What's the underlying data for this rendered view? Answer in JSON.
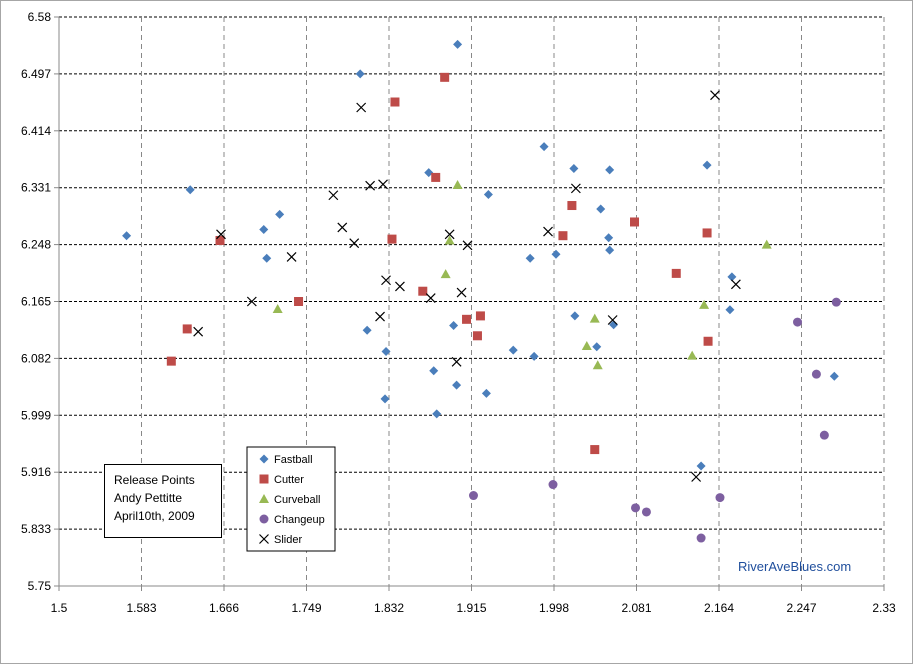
{
  "chart_data": {
    "type": "scatter",
    "title": "Release Points",
    "subtitle_lines": [
      "Andy Pettitte",
      "April10th, 2009"
    ],
    "credit": "RiverAveBlues.com",
    "xlim": [
      1.5,
      2.33
    ],
    "ylim": [
      5.75,
      6.58
    ],
    "x_ticks": [
      "1.5",
      "1.583",
      "1.666",
      "1.749",
      "1.832",
      "1.915",
      "1.998",
      "2.081",
      "2.164",
      "2.247",
      "2.33"
    ],
    "y_ticks": [
      "6.58",
      "6.497",
      "6.414",
      "6.331",
      "6.248",
      "6.165",
      "6.082",
      "5.999",
      "5.916",
      "5.833",
      "5.75"
    ],
    "grid": true,
    "legend_placement": "bottom-left",
    "series": [
      {
        "name": "Fastball",
        "marker": "diamond",
        "color": "#4a7ebb",
        "points": [
          [
            1.568,
            6.261
          ],
          [
            1.632,
            6.328
          ],
          [
            1.706,
            6.27
          ],
          [
            1.722,
            6.292
          ],
          [
            1.709,
            6.228
          ],
          [
            1.872,
            6.353
          ],
          [
            1.901,
            6.54
          ],
          [
            1.803,
            6.497
          ],
          [
            1.932,
            6.321
          ],
          [
            1.988,
            6.391
          ],
          [
            2.018,
            6.359
          ],
          [
            2.054,
            6.357
          ],
          [
            2.152,
            6.364
          ],
          [
            2.045,
            6.3
          ],
          [
            2.053,
            6.258
          ],
          [
            2.054,
            6.24
          ],
          [
            2.0,
            6.234
          ],
          [
            1.974,
            6.228
          ],
          [
            2.177,
            6.201
          ],
          [
            2.019,
            6.144
          ],
          [
            2.058,
            6.131
          ],
          [
            2.041,
            6.099
          ],
          [
            2.175,
            6.153
          ],
          [
            1.81,
            6.123
          ],
          [
            1.829,
            6.092
          ],
          [
            1.897,
            6.13
          ],
          [
            1.957,
            6.094
          ],
          [
            1.978,
            6.085
          ],
          [
            1.877,
            6.064
          ],
          [
            1.9,
            6.043
          ],
          [
            1.93,
            6.031
          ],
          [
            1.828,
            6.023
          ],
          [
            1.88,
            6.001
          ],
          [
            2.146,
            5.925
          ],
          [
            2.28,
            6.056
          ]
        ]
      },
      {
        "name": "Cutter",
        "marker": "square",
        "color": "#be4b48",
        "points": [
          [
            1.888,
            6.492
          ],
          [
            1.838,
            6.456
          ],
          [
            1.879,
            6.346
          ],
          [
            2.016,
            6.305
          ],
          [
            2.079,
            6.281
          ],
          [
            2.007,
            6.261
          ],
          [
            2.152,
            6.265
          ],
          [
            1.835,
            6.256
          ],
          [
            1.662,
            6.254
          ],
          [
            2.121,
            6.206
          ],
          [
            1.866,
            6.18
          ],
          [
            1.741,
            6.165
          ],
          [
            1.629,
            6.125
          ],
          [
            1.91,
            6.139
          ],
          [
            1.924,
            6.144
          ],
          [
            1.921,
            6.115
          ],
          [
            2.153,
            6.107
          ],
          [
            1.613,
            6.078
          ],
          [
            2.039,
            5.949
          ]
        ]
      },
      {
        "name": "Curveball",
        "marker": "triangle",
        "color": "#98b954",
        "points": [
          [
            1.901,
            6.335
          ],
          [
            1.893,
            6.254
          ],
          [
            1.889,
            6.205
          ],
          [
            2.212,
            6.248
          ],
          [
            1.72,
            6.154
          ],
          [
            2.149,
            6.16
          ],
          [
            2.039,
            6.14
          ],
          [
            2.031,
            6.1
          ],
          [
            2.042,
            6.072
          ],
          [
            2.137,
            6.086
          ]
        ]
      },
      {
        "name": "Changeup",
        "marker": "circle",
        "color": "#7d5fa0",
        "points": [
          [
            2.282,
            6.164
          ],
          [
            2.243,
            6.135
          ],
          [
            2.262,
            6.059
          ],
          [
            2.27,
            5.97
          ],
          [
            1.917,
            5.882
          ],
          [
            1.997,
            5.898
          ],
          [
            2.08,
            5.864
          ],
          [
            2.091,
            5.858
          ],
          [
            2.165,
            5.879
          ],
          [
            2.146,
            5.82
          ]
        ]
      },
      {
        "name": "Slider",
        "marker": "x",
        "color": "#000000",
        "points": [
          [
            2.16,
            6.466
          ],
          [
            1.804,
            6.448
          ],
          [
            2.02,
            6.33
          ],
          [
            1.813,
            6.334
          ],
          [
            1.826,
            6.336
          ],
          [
            1.776,
            6.32
          ],
          [
            1.785,
            6.273
          ],
          [
            1.663,
            6.263
          ],
          [
            1.893,
            6.263
          ],
          [
            1.992,
            6.267
          ],
          [
            1.797,
            6.25
          ],
          [
            1.911,
            6.247
          ],
          [
            1.734,
            6.23
          ],
          [
            1.829,
            6.196
          ],
          [
            1.843,
            6.187
          ],
          [
            2.181,
            6.19
          ],
          [
            1.874,
            6.17
          ],
          [
            1.905,
            6.178
          ],
          [
            1.694,
            6.165
          ],
          [
            1.823,
            6.143
          ],
          [
            1.64,
            6.121
          ],
          [
            2.057,
            6.138
          ],
          [
            1.9,
            6.077
          ],
          [
            2.141,
            5.909
          ]
        ]
      }
    ]
  }
}
